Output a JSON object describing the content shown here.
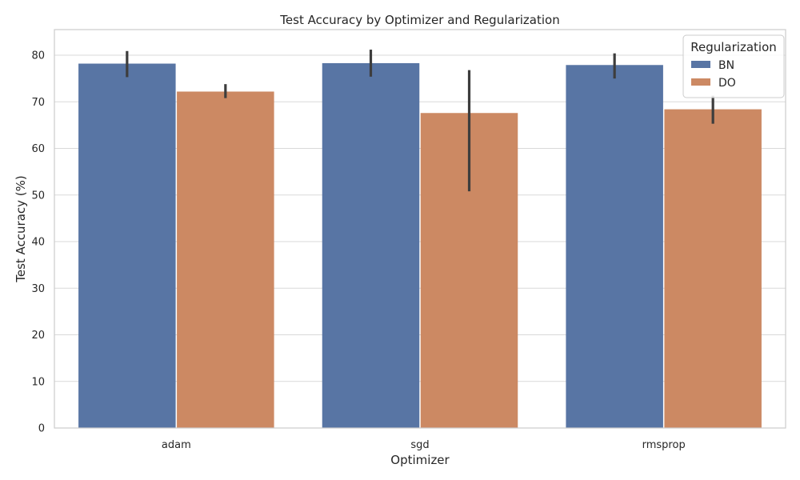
{
  "chart_data": {
    "type": "bar",
    "title": "Test Accuracy by Optimizer and Regularization",
    "xlabel": "Optimizer",
    "ylabel": "Test Accuracy (%)",
    "categories": [
      "adam",
      "sgd",
      "rmsprop"
    ],
    "series": [
      {
        "name": "BN",
        "color": "#5875a4",
        "values": [
          78.2,
          78.3,
          77.9
        ],
        "err_low": [
          75.3,
          75.4,
          75.0
        ],
        "err_high": [
          80.9,
          81.2,
          80.4
        ]
      },
      {
        "name": "DO",
        "color": "#cc8963",
        "values": [
          72.2,
          67.6,
          68.4
        ],
        "err_low": [
          70.8,
          50.8,
          65.3
        ],
        "err_high": [
          73.8,
          76.8,
          71.3
        ]
      }
    ],
    "ylim": [
      0,
      85.5
    ],
    "yticks": [
      0,
      10,
      20,
      30,
      40,
      50,
      60,
      70,
      80
    ],
    "grid": "y",
    "legend": {
      "title": "Regularization",
      "placement": "top-right"
    }
  }
}
